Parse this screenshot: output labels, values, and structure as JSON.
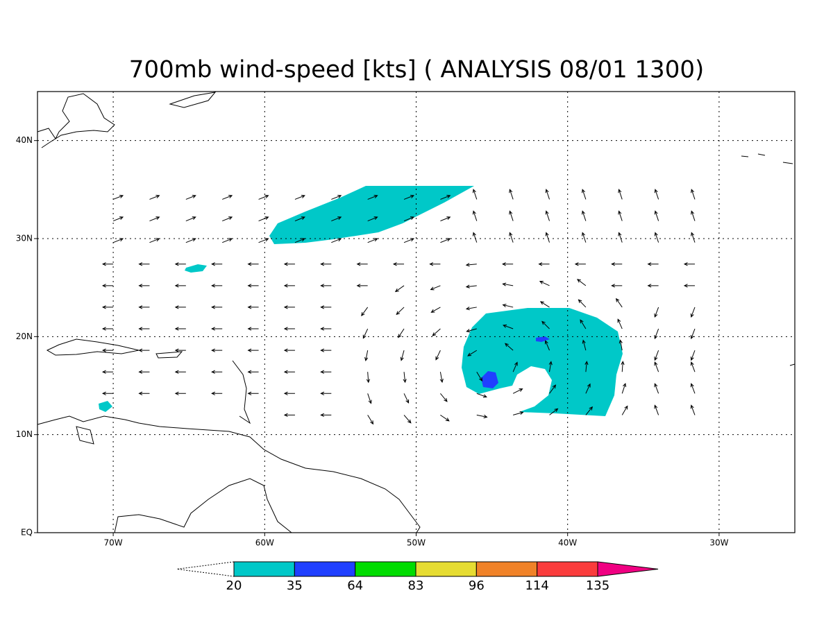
{
  "map": {
    "title": "700mb wind-speed [kts] ( ANALYSIS 08/01 1300)",
    "xlim": [
      -75,
      -25
    ],
    "ylim": [
      0,
      45
    ],
    "xticks": [
      {
        "value": -70,
        "label": "70W"
      },
      {
        "value": -60,
        "label": "60W"
      },
      {
        "value": -50,
        "label": "50W"
      },
      {
        "value": -40,
        "label": "40W"
      },
      {
        "value": -30,
        "label": "30W"
      }
    ],
    "yticks": [
      {
        "value": 0,
        "label": "EQ"
      },
      {
        "value": 10,
        "label": "10N"
      },
      {
        "value": 20,
        "label": "20N"
      },
      {
        "value": 30,
        "label": "30N"
      },
      {
        "value": 40,
        "label": "40N"
      }
    ],
    "grid": true,
    "colorbar": {
      "levels": [
        20,
        35,
        64,
        83,
        96,
        114,
        135
      ],
      "colors": [
        "#00c8c8",
        "#2040ff",
        "#00dc00",
        "#e6dc32",
        "#f08228",
        "#fa3c3c",
        "#f00082"
      ]
    }
  }
}
